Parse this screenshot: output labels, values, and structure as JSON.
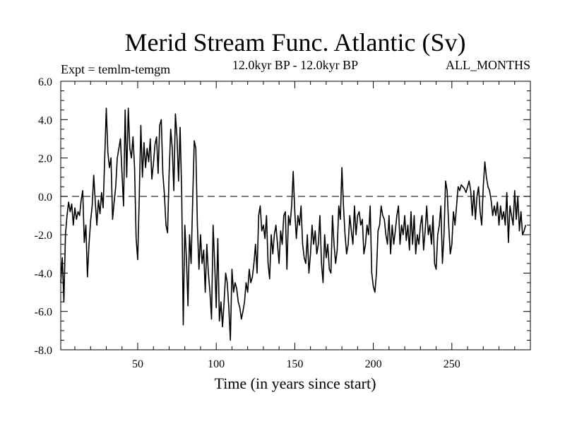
{
  "chart_data": {
    "type": "line",
    "title": "Merid Stream Func. Atlantic (Sv)",
    "subtitle": "12.0kyr BP - 12.0kyr BP",
    "left_label": "Expt = temlm-temgm",
    "right_label": "ALL_MONTHS",
    "xlabel": "Time (in years since start)",
    "ylabel": "",
    "xlim": [
      1,
      300
    ],
    "ylim": [
      -8.0,
      6.0
    ],
    "x_ticks": [
      50,
      100,
      150,
      200,
      250
    ],
    "x_tick_labels": [
      "50",
      "100",
      "150",
      "200",
      "250"
    ],
    "y_ticks": [
      -8,
      -6,
      -4,
      -2,
      0,
      2,
      4,
      6
    ],
    "y_tick_labels": [
      "-8.0",
      "-6.0",
      "-4.0",
      "-2.0",
      "0.0",
      "2.0",
      "4.0",
      "6.0"
    ],
    "reference_line": {
      "y": 0,
      "style": "dashed"
    },
    "series": [
      {
        "name": "Merid Stream Func. Atlantic",
        "x_start": 1,
        "x_step": 1,
        "values": [
          -4.5,
          -3.2,
          -5.5,
          -2.0,
          -1.0,
          -0.3,
          -0.8,
          -0.4,
          -1.5,
          -0.6,
          -1.2,
          -0.8,
          -1.0,
          -0.2,
          0.3,
          -2.4,
          -1.5,
          -4.2,
          -2.5,
          -1.3,
          -0.5,
          1.1,
          -0.3,
          -1.5,
          -0.2,
          -0.9,
          0.2,
          -0.6,
          2.0,
          4.6,
          2.3,
          1.5,
          2.0,
          -1.2,
          -0.3,
          0.5,
          2.0,
          2.5,
          3.0,
          1.2,
          -0.5,
          4.5,
          1.0,
          4.6,
          2.5,
          2.0,
          3.1,
          1.5,
          -2.2,
          -3.3,
          0.0,
          3.7,
          1.0,
          2.8,
          1.5,
          2.5,
          1.8,
          3.0,
          0.9,
          1.7,
          2.7,
          3.1,
          1.2,
          3.7,
          4.0,
          1.2,
          0.1,
          -1.5,
          -1.9,
          1.2,
          3.5,
          2.5,
          0.3,
          4.3,
          3.1,
          0.8,
          3.6,
          0.2,
          -6.7,
          -1.5,
          -3.2,
          -5.7,
          -2.0,
          -3.5,
          -0.2,
          2.9,
          2.5,
          -1.5,
          -3.8,
          -2.0,
          -3.5,
          -2.8,
          -5.0,
          -2.5,
          -4.0,
          -5.0,
          -6.4,
          -1.5,
          -3.5,
          -5.8,
          -2.2,
          -6.5,
          -5.5,
          -6.8,
          -5.5,
          -4.0,
          -4.5,
          -5.8,
          -7.5,
          -3.8,
          -5.0,
          -4.5,
          -4.8,
          -5.5,
          -5.8,
          -6.4,
          -6.0,
          -5.5,
          -4.5,
          -5.0,
          -3.8,
          -4.5,
          -4.2,
          -3.5,
          -2.5,
          -4.0,
          -1.0,
          -0.5,
          -1.8,
          -1.5,
          -2.2,
          -1.0,
          -3.5,
          -4.3,
          -2.0,
          -3.0,
          -2.0,
          -1.5,
          -2.5,
          -3.5,
          -1.8,
          -2.5,
          -1.0,
          -0.8,
          -3.8,
          -1.0,
          -1.5,
          -0.5,
          1.3,
          -0.8,
          -2.2,
          -1.0,
          -1.5,
          -0.5,
          -2.5,
          -3.2,
          -3.5,
          -2.0,
          -4.0,
          -3.0,
          -1.5,
          -2.5,
          -1.8,
          -3.0,
          -2.5,
          -1.0,
          -3.5,
          -4.5,
          -2.0,
          -3.2,
          -2.5,
          -3.8,
          -4.0,
          -1.0,
          -2.5,
          -3.5,
          -2.8,
          -0.5,
          -1.2,
          1.5,
          -0.5,
          -2.0,
          -3.0,
          -2.5,
          -1.0,
          -1.8,
          -2.5,
          -0.5,
          -2.0,
          -1.0,
          -0.8,
          -1.5,
          -1.2,
          -3.0,
          -2.5,
          -1.5,
          -2.0,
          -0.5,
          -4.0,
          -4.7,
          -5.0,
          -4.0,
          -1.8,
          -1.5,
          -0.5,
          -1.0,
          -1.2,
          -2.0,
          -2.5,
          -1.0,
          -3.0,
          -1.5,
          -2.5,
          -1.8,
          -1.0,
          -0.5,
          -2.5,
          -1.5,
          -2.0,
          -1.0,
          -2.3,
          -1.5,
          -2.8,
          -0.8,
          -2.5,
          -1.0,
          -3.0,
          -2.0,
          -2.5,
          -1.5,
          -1.0,
          -2.8,
          -1.8,
          -0.5,
          -2.0,
          -1.5,
          -2.5,
          -1.0,
          -3.5,
          -3.8,
          -2.0,
          -1.5,
          -0.5,
          -3.5,
          -2.0,
          0.8,
          0.3,
          -1.5,
          -3.0,
          -2.5,
          -0.8,
          -1.5,
          -0.5,
          0.5,
          0.3,
          0.6,
          0.5,
          0.4,
          0.2,
          0.5,
          0.8,
          0.3,
          -1.0,
          0.3,
          -1.2,
          0.0,
          0.5,
          -0.8,
          -1.5,
          0.5,
          1.8,
          1.0,
          0.5,
          0.3,
          -0.2,
          -1.0,
          -0.5,
          -1.0,
          -0.3,
          -1.5,
          -0.5,
          -1.2,
          -0.8,
          -1.5,
          0.2,
          -2.4,
          -0.5,
          -1.0,
          -1.5,
          0.3,
          -1.2,
          0.0,
          -1.8,
          -0.8,
          -2.0,
          -1.8,
          -1.5
        ]
      }
    ]
  }
}
